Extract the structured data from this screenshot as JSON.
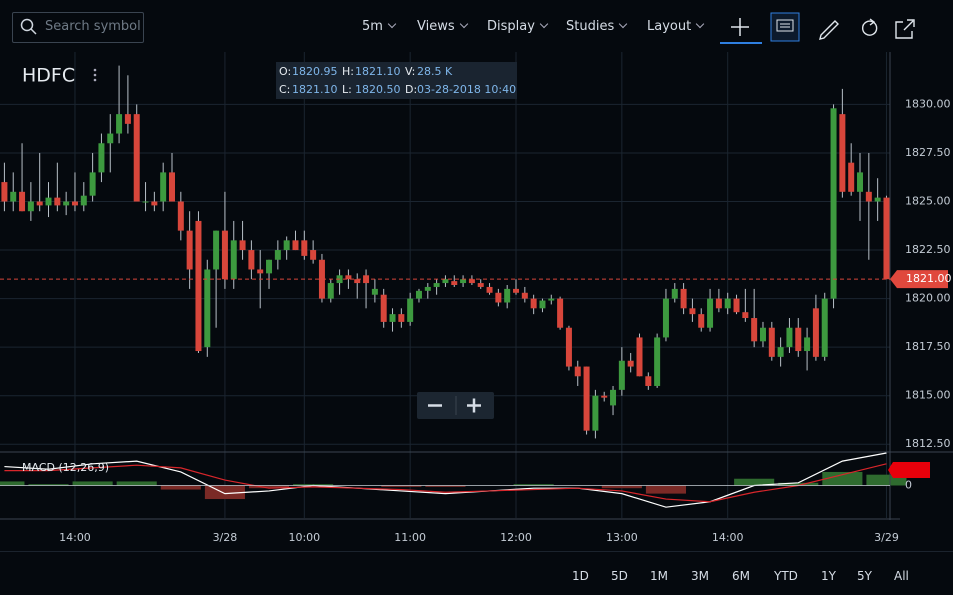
{
  "toolbar": {
    "search_placeholder": "Search symbol",
    "menus": [
      "5m",
      "Views",
      "Display",
      "Studies",
      "Layout"
    ]
  },
  "symbol": "HDFC",
  "ohlc_readout": [
    [
      "O:",
      "1820.95"
    ],
    [
      "H:",
      "1821.10"
    ],
    [
      "V:",
      "28.5 K"
    ],
    [
      "C:",
      "1821.10"
    ],
    [
      "L:",
      "1820.50"
    ],
    [
      "D:",
      "03-28-2018 10:40"
    ]
  ],
  "ranges": [
    "1D",
    "5D",
    "1M",
    "3M",
    "6M",
    "YTD",
    "1Y",
    "5Y",
    "All"
  ],
  "chart_data": {
    "type": "candlestick",
    "up_color": "#3d9a3f",
    "down_color": "#d8463b",
    "grid": true,
    "xlim": [
      -0.5,
      100.4
    ],
    "ylim": [
      1812.1,
      1832.7
    ],
    "xticks": [
      {
        "value": 8,
        "label": "14:00"
      },
      {
        "value": 25,
        "label": "3/28"
      },
      {
        "value": 34,
        "label": "10:00"
      },
      {
        "value": 46,
        "label": "11:00"
      },
      {
        "value": 58,
        "label": "12:00"
      },
      {
        "value": 70,
        "label": "13:00"
      },
      {
        "value": 82,
        "label": "14:00"
      },
      {
        "value": 100,
        "label": "3/29"
      }
    ],
    "yticks": [
      {
        "value": 1812.5,
        "label": "1812.50"
      },
      {
        "value": 1815,
        "label": "1815.00"
      },
      {
        "value": 1817.5,
        "label": "1817.50"
      },
      {
        "value": 1820,
        "label": "1820.00"
      },
      {
        "value": 1822.5,
        "label": "1822.50"
      },
      {
        "value": 1825,
        "label": "1825.00"
      },
      {
        "value": 1827.5,
        "label": "1827.50"
      },
      {
        "value": 1830,
        "label": "1830.00"
      }
    ],
    "last_price": {
      "value": 1821,
      "label": "1821.00"
    },
    "ohlc": [
      [
        1826,
        1827,
        1824.5,
        1825
      ],
      [
        1825,
        1826.5,
        1824.5,
        1825.5
      ],
      [
        1825.5,
        1828,
        1824.5,
        1824.5
      ],
      [
        1824.5,
        1826,
        1824,
        1825
      ],
      [
        1825,
        1827.5,
        1824.5,
        1824.8
      ],
      [
        1824.8,
        1826,
        1824.2,
        1825.2
      ],
      [
        1825.2,
        1827,
        1824.5,
        1824.8
      ],
      [
        1824.8,
        1825.5,
        1824.3,
        1825
      ],
      [
        1825,
        1826.5,
        1824.5,
        1824.8
      ],
      [
        1824.8,
        1826,
        1824.5,
        1825.3
      ],
      [
        1825.3,
        1827.5,
        1825,
        1826.5
      ],
      [
        1826.5,
        1828.5,
        1826,
        1828
      ],
      [
        1828,
        1829.5,
        1826.5,
        1828.5
      ],
      [
        1828.5,
        1832,
        1828,
        1829.5
      ],
      [
        1829.5,
        1831.5,
        1828.5,
        1829
      ],
      [
        1829.5,
        1830,
        1825,
        1825
      ],
      [
        1825,
        1826,
        1824.5,
        1825
      ],
      [
        1825,
        1825.5,
        1824.5,
        1824.8
      ],
      [
        1825,
        1827,
        1824.5,
        1826.5
      ],
      [
        1826.5,
        1827.5,
        1825,
        1825
      ],
      [
        1825,
        1825.5,
        1823,
        1823.5
      ],
      [
        1823.5,
        1824.5,
        1820.5,
        1821.5
      ],
      [
        1824,
        1824.5,
        1817.2,
        1817.3
      ],
      [
        1817.5,
        1822,
        1817,
        1821.5
      ],
      [
        1821.5,
        1823.5,
        1818.5,
        1823.5
      ],
      [
        1823.5,
        1825.5,
        1820.5,
        1821
      ],
      [
        1821,
        1824,
        1820.5,
        1823
      ],
      [
        1823,
        1824,
        1822,
        1822.5
      ],
      [
        1822.5,
        1823,
        1821,
        1821.5
      ],
      [
        1821.5,
        1822.5,
        1819.5,
        1821.3
      ],
      [
        1821.3,
        1822,
        1820.5,
        1822
      ],
      [
        1822,
        1823,
        1821.5,
        1822.5
      ],
      [
        1822.5,
        1823.2,
        1822,
        1823
      ],
      [
        1823,
        1823.5,
        1822.5,
        1822.5
      ],
      [
        1823,
        1823.5,
        1822,
        1822.2
      ],
      [
        1822.5,
        1823,
        1821.8,
        1822
      ],
      [
        1822,
        1822.3,
        1819.8,
        1820
      ],
      [
        1820,
        1821,
        1819.8,
        1820.8
      ],
      [
        1820.8,
        1821.5,
        1820.2,
        1821.2
      ],
      [
        1821.2,
        1821.5,
        1820.5,
        1821
      ],
      [
        1821,
        1821.3,
        1820,
        1820.8
      ],
      [
        1821.2,
        1821.5,
        1819.5,
        1820.8
      ],
      [
        1820.2,
        1821,
        1819.8,
        1820.5
      ],
      [
        1820.2,
        1820.5,
        1818.5,
        1818.8
      ],
      [
        1818.8,
        1819.5,
        1818.3,
        1819.2
      ],
      [
        1819.2,
        1819.5,
        1818.5,
        1818.8
      ],
      [
        1818.8,
        1820.3,
        1818.6,
        1820
      ],
      [
        1820,
        1820.5,
        1819.8,
        1820.4
      ],
      [
        1820.4,
        1820.8,
        1820,
        1820.6
      ],
      [
        1820.6,
        1821,
        1820.2,
        1820.8
      ],
      [
        1820.8,
        1821.2,
        1820.6,
        1821
      ],
      [
        1820.9,
        1821.2,
        1820.6,
        1820.7
      ],
      [
        1820.8,
        1821.2,
        1820.6,
        1821
      ],
      [
        1821,
        1821.2,
        1820.7,
        1820.8
      ],
      [
        1820.8,
        1821,
        1820.5,
        1820.6
      ],
      [
        1820.6,
        1820.8,
        1820.2,
        1820.3
      ],
      [
        1820.3,
        1820.5,
        1819.6,
        1819.8
      ],
      [
        1819.8,
        1820.7,
        1819.5,
        1820.5
      ],
      [
        1820.5,
        1821,
        1820.2,
        1820.3
      ],
      [
        1820.3,
        1820.6,
        1819.8,
        1820
      ],
      [
        1820,
        1820.2,
        1819.2,
        1819.5
      ],
      [
        1819.5,
        1820,
        1819.3,
        1819.9
      ],
      [
        1819.9,
        1820.2,
        1819.7,
        1820
      ],
      [
        1820,
        1820.1,
        1818.4,
        1818.5
      ],
      [
        1818.5,
        1818.6,
        1816.3,
        1816.5
      ],
      [
        1816.5,
        1816.8,
        1815.5,
        1816
      ],
      [
        1816.5,
        1816.5,
        1813,
        1813.2
      ],
      [
        1813.2,
        1815.3,
        1812.8,
        1815
      ],
      [
        1815,
        1815.2,
        1814.7,
        1814.9
      ],
      [
        1814.5,
        1815.5,
        1814,
        1815.3
      ],
      [
        1815.3,
        1817.5,
        1815,
        1816.8
      ],
      [
        1816.8,
        1817.2,
        1816.2,
        1816.5
      ],
      [
        1818,
        1818.2,
        1816,
        1816
      ],
      [
        1816,
        1816.2,
        1815.3,
        1815.5
      ],
      [
        1815.5,
        1818.2,
        1815.4,
        1818
      ],
      [
        1818,
        1820.5,
        1817.8,
        1820
      ],
      [
        1820,
        1820.8,
        1819.8,
        1820.5
      ],
      [
        1820.5,
        1820.8,
        1819.2,
        1819.5
      ],
      [
        1819.5,
        1820,
        1818.8,
        1819.2
      ],
      [
        1819.2,
        1819.5,
        1818.3,
        1818.5
      ],
      [
        1818.5,
        1820.5,
        1818.3,
        1820
      ],
      [
        1820,
        1820.5,
        1819.3,
        1819.5
      ],
      [
        1819.5,
        1820.3,
        1819.2,
        1820
      ],
      [
        1820,
        1820.2,
        1819.2,
        1819.3
      ],
      [
        1819.3,
        1820.5,
        1818.8,
        1819
      ],
      [
        1819,
        1820.5,
        1817.5,
        1817.8
      ],
      [
        1817.8,
        1818.8,
        1817.5,
        1818.5
      ],
      [
        1818.5,
        1818.8,
        1816.8,
        1817
      ],
      [
        1817,
        1818,
        1816.5,
        1817.5
      ],
      [
        1817.5,
        1819,
        1817.2,
        1818.5
      ],
      [
        1818.5,
        1819,
        1817,
        1817.3
      ],
      [
        1817.3,
        1818.5,
        1816.3,
        1818
      ],
      [
        1819.5,
        1820.2,
        1816.8,
        1817
      ],
      [
        1817,
        1820.3,
        1816.8,
        1820
      ],
      [
        1820,
        1830,
        1819.5,
        1829.8
      ],
      [
        1829.5,
        1830.8,
        1825.2,
        1825.5
      ],
      [
        1827,
        1828,
        1825.3,
        1825.5
      ],
      [
        1825.5,
        1827.5,
        1824,
        1826.5
      ],
      [
        1825.5,
        1827.5,
        1822,
        1825
      ],
      [
        1825,
        1826.2,
        1824,
        1825.2
      ],
      [
        1825.2,
        1825.3,
        1821,
        1821
      ]
    ],
    "macd": {
      "title": "MACD (12,26,9)",
      "ylim": [
        -1.2,
        1.2
      ],
      "yticks": [
        0
      ],
      "x": [
        0,
        5,
        10,
        15,
        20,
        25,
        30,
        35,
        40,
        45,
        50,
        55,
        60,
        65,
        70,
        75,
        80,
        85,
        90,
        95,
        100
      ],
      "macd_color": "#ffffff",
      "signal_color": "#d8262b",
      "macd": [
        0.7,
        0.6,
        0.8,
        0.9,
        0.5,
        -0.3,
        -0.2,
        0,
        -0.1,
        -0.2,
        -0.3,
        -0.2,
        -0.1,
        -0.1,
        -0.3,
        -0.8,
        -0.6,
        0,
        0.1,
        0.9,
        1.2
      ],
      "signal": [
        0.55,
        0.55,
        0.65,
        0.75,
        0.65,
        0.2,
        -0.1,
        -0.05,
        -0.1,
        -0.15,
        -0.25,
        -0.2,
        -0.15,
        -0.1,
        -0.2,
        -0.5,
        -0.6,
        -0.25,
        0,
        0.4,
        0.8
      ],
      "histogram": [
        0.15,
        0.05,
        0.15,
        0.15,
        -0.15,
        -0.5,
        -0.1,
        0.05,
        0,
        -0.05,
        -0.05,
        0,
        0.05,
        0,
        -0.1,
        -0.3,
        0,
        0.25,
        0.1,
        0.5,
        0.4
      ]
    }
  }
}
